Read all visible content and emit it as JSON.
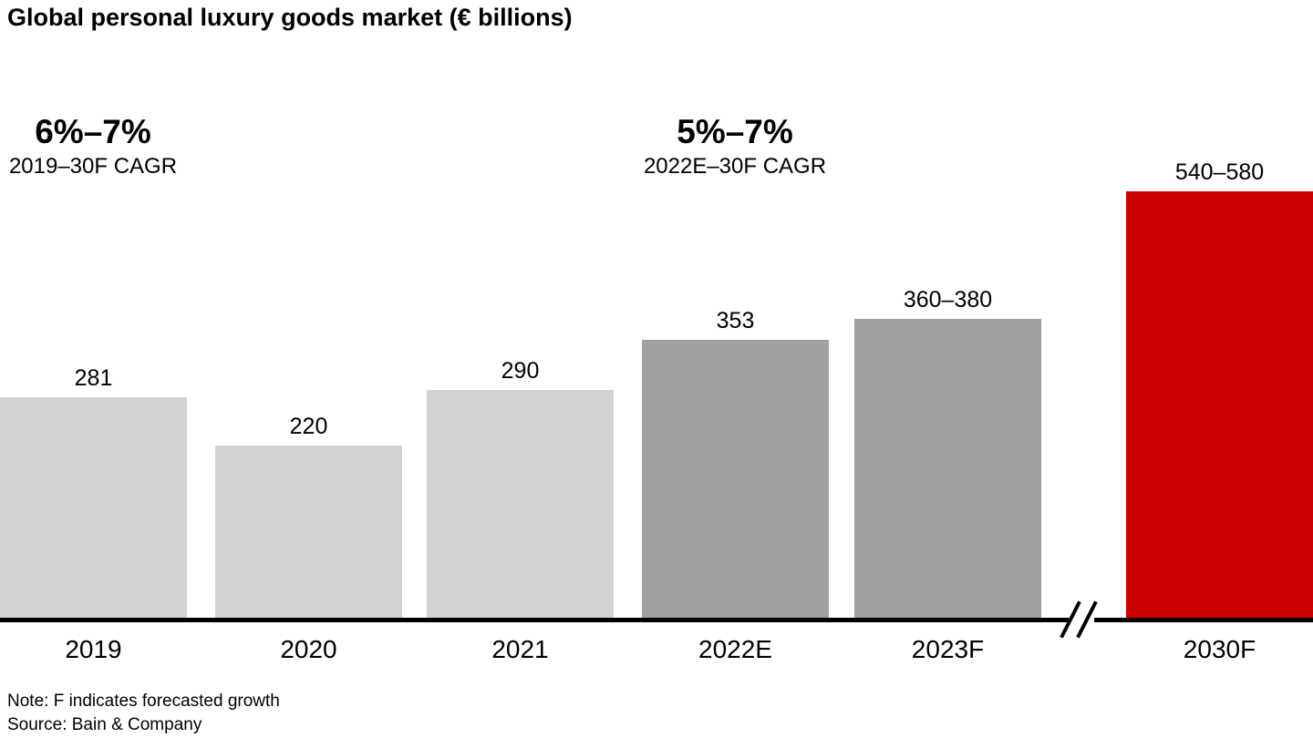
{
  "title": "Global personal luxury goods market (€ billions)",
  "annotations": {
    "left": {
      "big": "6%–7%",
      "small": "2019–30F CAGR"
    },
    "mid": {
      "big": "5%–7%",
      "small": "2022E–30F CAGR"
    }
  },
  "chart_data": {
    "type": "bar",
    "title": "Global personal luxury goods market (€ billions)",
    "ylabel": "€ billions",
    "categories": [
      "2019",
      "2020",
      "2021",
      "2022E",
      "2023F",
      "2030F"
    ],
    "values": [
      281,
      220,
      290,
      353,
      380,
      540
    ],
    "value_labels": [
      "281",
      "220",
      "290",
      "353",
      "360–380",
      "540–580"
    ],
    "value_ranges": {
      "2023F": [
        360,
        380
      ],
      "2030F": [
        540,
        580
      ]
    },
    "bar_colors": [
      "#d2d2d2",
      "#d2d2d2",
      "#d2d2d2",
      "#a0a0a0",
      "#a0a0a0",
      "#cc0000"
    ],
    "ylim": [
      0,
      620
    ],
    "grid": false,
    "legend": "none",
    "x_axis_break_between": [
      "2023F",
      "2030F"
    ],
    "cagr_annotations": [
      {
        "value": "6%–7%",
        "period": "2019–30F CAGR",
        "over_category": "2019"
      },
      {
        "value": "5%–7%",
        "period": "2022E–30F CAGR",
        "over_category": "2022E"
      }
    ]
  },
  "footer": {
    "note": "Note: F indicates forecasted growth",
    "source": "Source: Bain & Company"
  },
  "colors": {
    "bar_light": "#d2d2d2",
    "bar_medium": "#a0a0a0",
    "bar_red": "#cc0000",
    "axis": "#000000",
    "text": "#000000",
    "background": "#ffffff"
  }
}
